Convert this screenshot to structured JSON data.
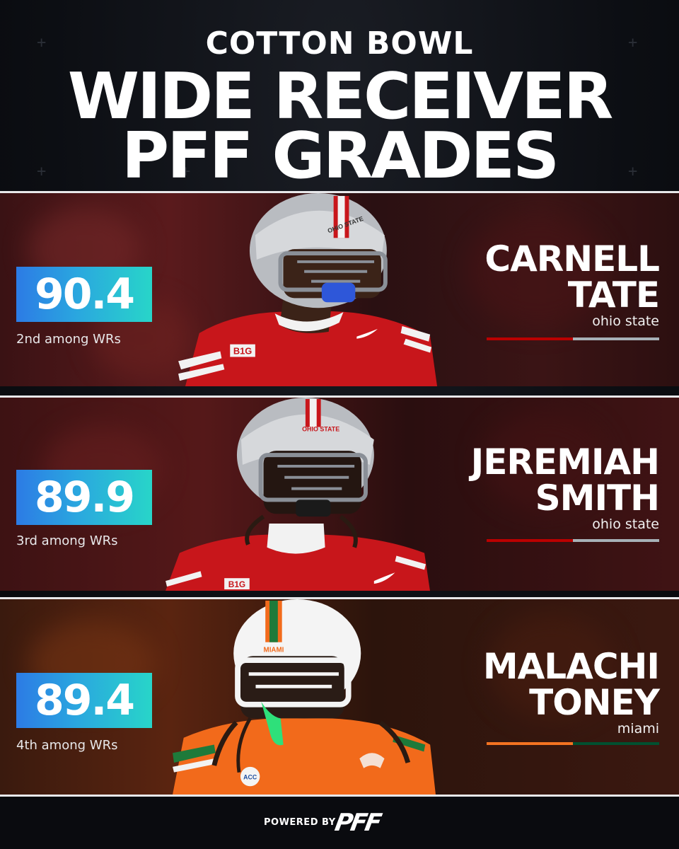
{
  "header": {
    "eyebrow": "COTTON BOWL",
    "title_line1": "WIDE RECEIVER",
    "title_line2": "PFF GRADES"
  },
  "players": [
    {
      "grade": "90.4",
      "rank": "2nd among WRs",
      "first_name": "CARNELL",
      "last_name": "TATE",
      "school": "ohio state",
      "school_colors": [
        "#bb0000",
        "#a7b1b7"
      ],
      "jersey_patch": "B1G",
      "helmet_text": "OHIO STATE"
    },
    {
      "grade": "89.9",
      "rank": "3rd among WRs",
      "first_name": "JEREMIAH",
      "last_name": "SMITH",
      "school": "ohio state",
      "school_colors": [
        "#bb0000",
        "#a7b1b7"
      ],
      "jersey_patch": "B1G",
      "helmet_text": "OHIO STATE"
    },
    {
      "grade": "89.4",
      "rank": "4th among WRs",
      "first_name": "MALACHI",
      "last_name": "TONEY",
      "school": "miami",
      "school_colors": [
        "#f47321",
        "#005030"
      ],
      "jersey_patch": "ACC",
      "helmet_text": "MIAMI"
    }
  ],
  "footer": {
    "powered_by": "POWERED BY",
    "brand": "PFF"
  },
  "colors": {
    "grade_gradient_start": "#2c7be5",
    "grade_gradient_end": "#28d5c9",
    "background": "#0b0d12"
  }
}
